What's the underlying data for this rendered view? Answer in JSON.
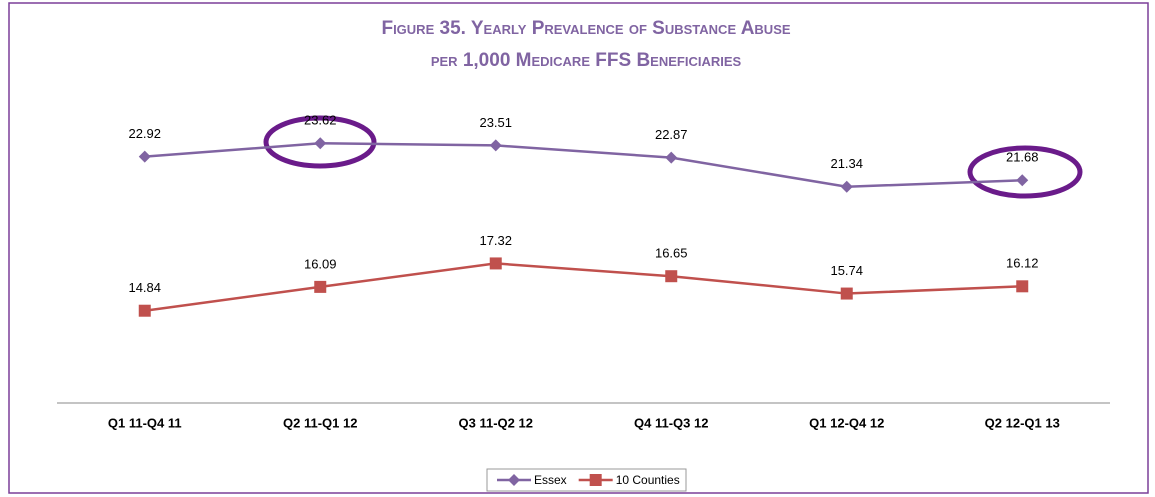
{
  "chart_data": {
    "type": "line",
    "title": "Figure 35. Yearly Prevalence of Substance Abuse",
    "subtitle": "per 1,000 Medicare FFS Beneficiaries",
    "categories": [
      "Q1 11-Q4 11",
      "Q2 11-Q1 12",
      "Q3 11-Q2 12",
      "Q4 11-Q3 12",
      "Q1 12-Q4 12",
      "Q2 12-Q1 13"
    ],
    "series": [
      {
        "name": "Essex",
        "color": "#8064a2",
        "marker": "diamond",
        "values": [
          22.92,
          23.62,
          23.51,
          22.87,
          21.34,
          21.68
        ]
      },
      {
        "name": "10 Counties",
        "color": "#c0504d",
        "marker": "square",
        "values": [
          14.84,
          16.09,
          17.32,
          16.65,
          15.74,
          16.12
        ]
      }
    ],
    "ylim": [
      10,
      25
    ],
    "legend": "bottom"
  }
}
